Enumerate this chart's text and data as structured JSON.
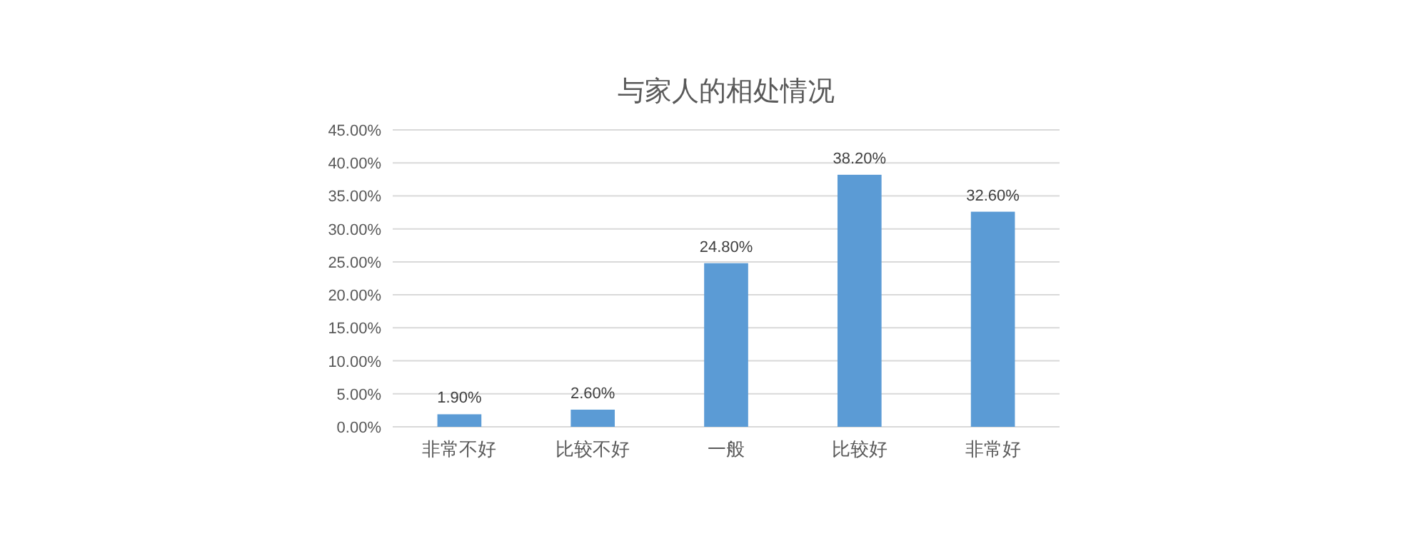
{
  "chart_data": {
    "type": "bar",
    "title": "与家人的相处情况",
    "categories": [
      "非常不好",
      "比较不好",
      "一般",
      "比较好",
      "非常好"
    ],
    "values": [
      1.9,
      2.6,
      24.8,
      38.2,
      32.6
    ],
    "value_labels": [
      "1.90%",
      "2.60%",
      "24.80%",
      "38.20%",
      "32.60%"
    ],
    "color": "#5b9bd5",
    "ylim": [
      0,
      45
    ],
    "yticks": [
      {
        "value": 0,
        "label": "0.00%"
      },
      {
        "value": 5,
        "label": "5.00%"
      },
      {
        "value": 10,
        "label": "10.00%"
      },
      {
        "value": 15,
        "label": "15.00%"
      },
      {
        "value": 20,
        "label": "20.00%"
      },
      {
        "value": 25,
        "label": "25.00%"
      },
      {
        "value": 30,
        "label": "30.00%"
      },
      {
        "value": 35,
        "label": "35.00%"
      },
      {
        "value": 40,
        "label": "40.00%"
      },
      {
        "value": 45,
        "label": "45.00%"
      }
    ],
    "grid": "y"
  }
}
